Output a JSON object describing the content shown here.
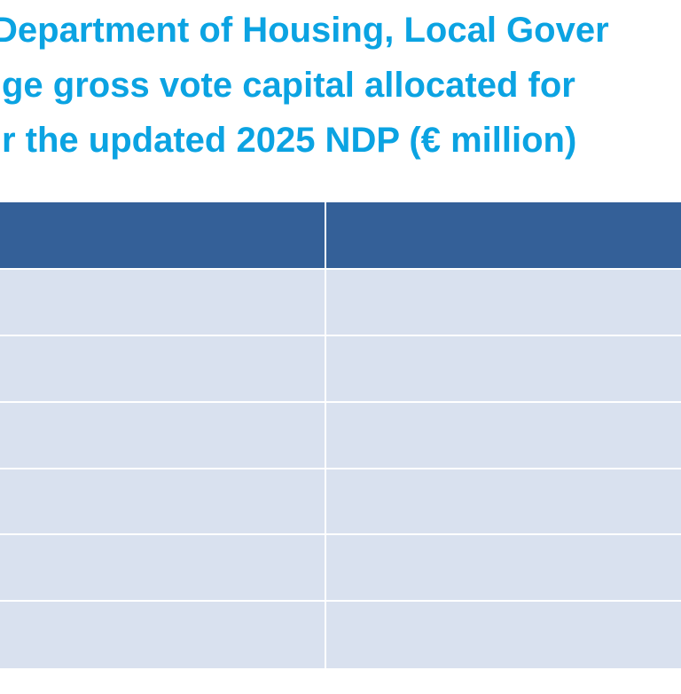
{
  "title": {
    "lines": [
      "Department of Housing, Local Gover",
      "ge gross vote capital allocated for",
      "r the updated 2025 NDP (€ million)"
    ]
  }
}
